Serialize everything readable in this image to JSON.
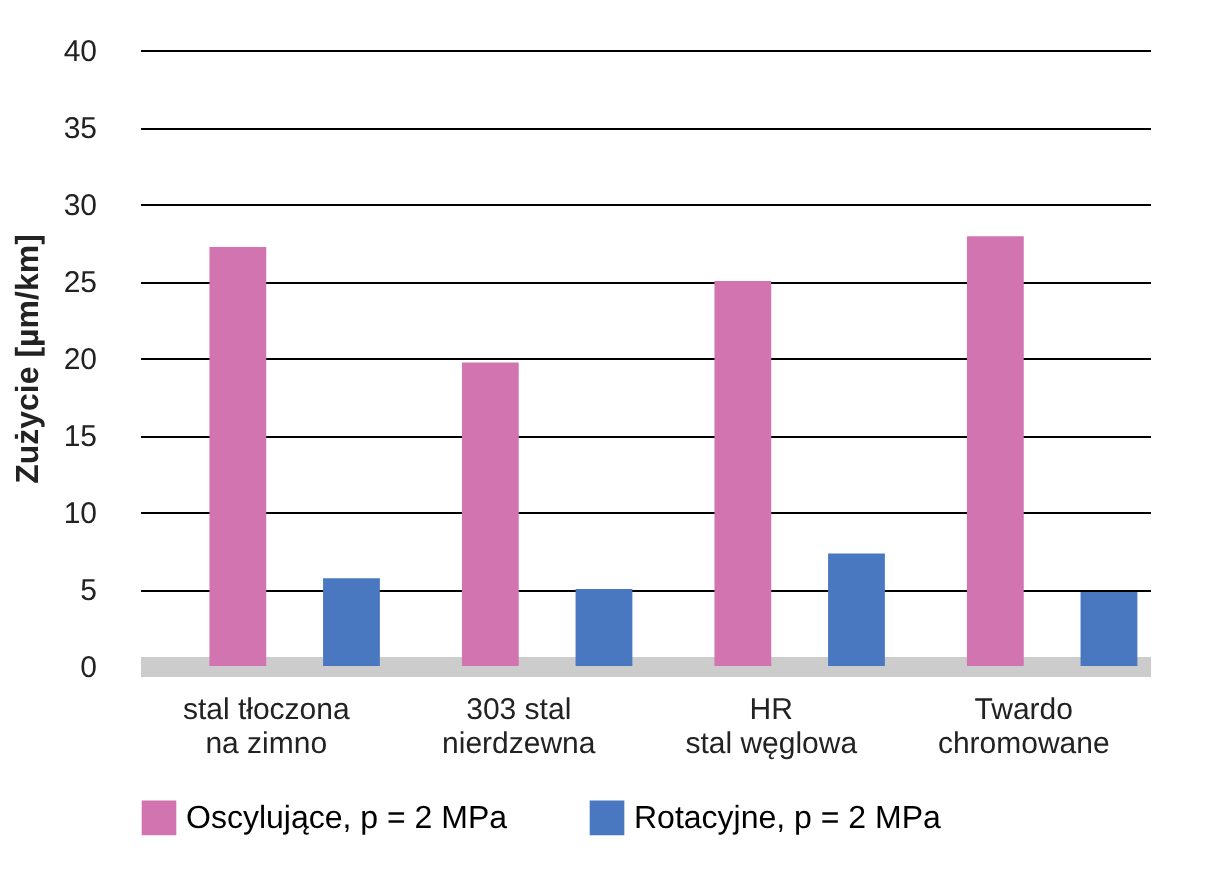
{
  "chart_data": {
    "type": "bar",
    "ylabel": "Zużycie [µm/km]",
    "categories": [
      "stal tłoczona\nna zimno",
      "303 stal\nnierdzewna",
      "HR\nstal węglowa",
      "Twardo\nchromowane"
    ],
    "series": [
      {
        "name": "Oscylujące, p = 2 MPa",
        "color": "#d274b0",
        "values": [
          27.2,
          19.7,
          25.0,
          27.9
        ]
      },
      {
        "name": "Rotacyjne, p = 2 MPa",
        "color": "#4a78c0",
        "values": [
          5.7,
          5.0,
          7.3,
          4.8
        ]
      }
    ],
    "ylim": [
      0,
      40
    ],
    "yticks": [
      0,
      5,
      10,
      15,
      20,
      25,
      30,
      35,
      40
    ],
    "grid": "y",
    "legend": "bottom"
  }
}
